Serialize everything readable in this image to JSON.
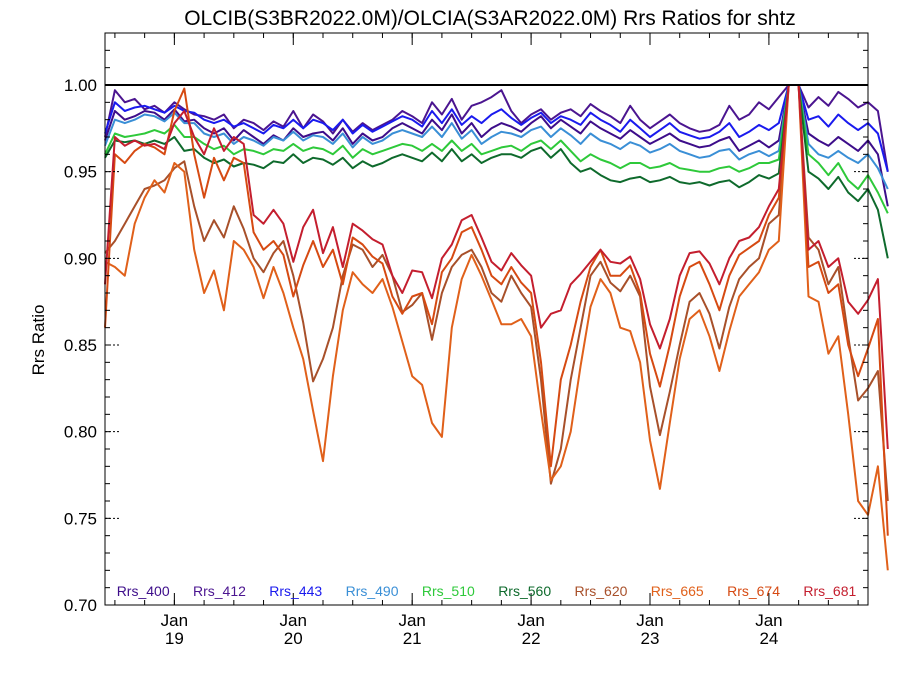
{
  "chart_data": {
    "type": "line",
    "title": "OLCIB(S3BR2022.0M)/OLCIA(S3AR2022.0M)  Rrs Ratios for shtz",
    "xlabel": "",
    "ylabel": "Rrs Ratio",
    "xlim": [
      "Jan 18 10:00",
      "Jan 24 20:00"
    ],
    "ylim": [
      0.7,
      1.03
    ],
    "yticks": [
      "0.70",
      "0.75",
      "0.80",
      "0.85",
      "0.90",
      "0.95",
      "1.00"
    ],
    "xticks": [
      {
        "month": "Jan",
        "day": "19"
      },
      {
        "month": "Jan",
        "day": "20"
      },
      {
        "month": "Jan",
        "day": "21"
      },
      {
        "month": "Jan",
        "day": "22"
      },
      {
        "month": "Jan",
        "day": "23"
      },
      {
        "month": "Jan",
        "day": "24"
      }
    ],
    "reference_line": 1.0,
    "x_start": "Jan 18 10:00",
    "x_step_hours": 2,
    "series": [
      {
        "name": "Rrs_400",
        "color": "#3d0d8a",
        "values": [
          0.968,
          0.985,
          0.98,
          0.982,
          0.985,
          0.984,
          0.98,
          0.986,
          0.979,
          0.98,
          0.975,
          0.972,
          0.975,
          0.968,
          0.974,
          0.97,
          0.966,
          0.971,
          0.968,
          0.975,
          0.97,
          0.972,
          0.973,
          0.968,
          0.975,
          0.966,
          0.972,
          0.968,
          0.97,
          0.975,
          0.978,
          0.975,
          0.972,
          0.98,
          0.974,
          0.983,
          0.972,
          0.978,
          0.97,
          0.975,
          0.978,
          0.976,
          0.973,
          0.978,
          0.982,
          0.975,
          0.98,
          0.976,
          0.972,
          0.979,
          0.975,
          0.972,
          0.969,
          0.974,
          0.97,
          0.966,
          0.969,
          0.972,
          0.968,
          0.966,
          0.964,
          0.965,
          0.968,
          0.97,
          0.962,
          0.965,
          0.968,
          0.964,
          0.968,
          1.0,
          1.0,
          0.972,
          0.968,
          0.965,
          0.97,
          0.966,
          0.962,
          0.968,
          0.96,
          0.93
        ]
      },
      {
        "name": "Rrs_412",
        "color": "#4b1590",
        "values": [
          0.97,
          0.997,
          0.99,
          0.992,
          0.986,
          0.988,
          0.984,
          0.99,
          0.986,
          0.983,
          0.982,
          0.98,
          0.983,
          0.975,
          0.98,
          0.978,
          0.974,
          0.979,
          0.976,
          0.985,
          0.975,
          0.983,
          0.979,
          0.972,
          0.98,
          0.973,
          0.978,
          0.974,
          0.977,
          0.98,
          0.985,
          0.982,
          0.978,
          0.99,
          0.983,
          0.992,
          0.98,
          0.988,
          0.99,
          0.993,
          0.997,
          0.985,
          0.978,
          0.983,
          0.986,
          0.98,
          0.984,
          0.986,
          0.982,
          0.989,
          0.985,
          0.982,
          0.978,
          0.988,
          0.98,
          0.975,
          0.979,
          0.983,
          0.978,
          0.975,
          0.973,
          0.974,
          0.977,
          0.988,
          0.98,
          0.983,
          0.99,
          0.986,
          0.993,
          1.0,
          1.0,
          0.987,
          0.993,
          0.988,
          0.996,
          0.992,
          0.987,
          0.99,
          0.985,
          0.95
        ]
      },
      {
        "name": "Rrs_443",
        "color": "#1a1aee",
        "values": [
          0.972,
          0.99,
          0.985,
          0.987,
          0.988,
          0.986,
          0.984,
          0.988,
          0.985,
          0.984,
          0.98,
          0.978,
          0.98,
          0.976,
          0.978,
          0.975,
          0.972,
          0.977,
          0.975,
          0.98,
          0.975,
          0.98,
          0.978,
          0.974,
          0.98,
          0.972,
          0.977,
          0.973,
          0.976,
          0.979,
          0.982,
          0.98,
          0.976,
          0.985,
          0.978,
          0.986,
          0.977,
          0.982,
          0.978,
          0.983,
          0.986,
          0.981,
          0.977,
          0.981,
          0.984,
          0.978,
          0.982,
          0.98,
          0.977,
          0.984,
          0.98,
          0.977,
          0.973,
          0.98,
          0.975,
          0.97,
          0.974,
          0.978,
          0.973,
          0.971,
          0.969,
          0.97,
          0.973,
          0.978,
          0.97,
          0.973,
          0.977,
          0.974,
          0.978,
          1.0,
          1.0,
          0.98,
          0.982,
          0.976,
          0.983,
          0.978,
          0.974,
          0.978,
          0.972,
          0.95
        ]
      },
      {
        "name": "Rrs_490",
        "color": "#3a8fd6",
        "values": [
          0.965,
          0.98,
          0.978,
          0.98,
          0.983,
          0.982,
          0.979,
          0.984,
          0.978,
          0.978,
          0.972,
          0.97,
          0.972,
          0.966,
          0.97,
          0.968,
          0.965,
          0.97,
          0.968,
          0.973,
          0.968,
          0.971,
          0.97,
          0.966,
          0.972,
          0.964,
          0.97,
          0.966,
          0.968,
          0.972,
          0.974,
          0.972,
          0.97,
          0.976,
          0.97,
          0.978,
          0.969,
          0.974,
          0.966,
          0.97,
          0.973,
          0.972,
          0.97,
          0.974,
          0.976,
          0.97,
          0.975,
          0.971,
          0.966,
          0.972,
          0.968,
          0.966,
          0.963,
          0.967,
          0.965,
          0.961,
          0.963,
          0.966,
          0.962,
          0.96,
          0.958,
          0.959,
          0.962,
          0.963,
          0.957,
          0.96,
          0.962,
          0.959,
          0.962,
          1.0,
          1.0,
          0.966,
          0.96,
          0.958,
          0.962,
          0.958,
          0.955,
          0.96,
          0.952,
          0.94
        ]
      },
      {
        "name": "Rrs_510",
        "color": "#2ec93a",
        "values": [
          0.96,
          0.972,
          0.97,
          0.971,
          0.972,
          0.974,
          0.972,
          0.977,
          0.97,
          0.97,
          0.966,
          0.963,
          0.965,
          0.96,
          0.963,
          0.962,
          0.96,
          0.963,
          0.962,
          0.966,
          0.962,
          0.964,
          0.963,
          0.96,
          0.965,
          0.958,
          0.963,
          0.96,
          0.962,
          0.964,
          0.966,
          0.965,
          0.962,
          0.966,
          0.962,
          0.968,
          0.962,
          0.966,
          0.96,
          0.962,
          0.964,
          0.965,
          0.962,
          0.966,
          0.968,
          0.963,
          0.968,
          0.962,
          0.956,
          0.96,
          0.957,
          0.955,
          0.952,
          0.955,
          0.955,
          0.952,
          0.953,
          0.955,
          0.952,
          0.951,
          0.95,
          0.95,
          0.952,
          0.953,
          0.95,
          0.952,
          0.955,
          0.955,
          0.957,
          1.0,
          1.0,
          0.96,
          0.955,
          0.948,
          0.955,
          0.945,
          0.94,
          0.948,
          0.938,
          0.926
        ]
      },
      {
        "name": "Rrs_560",
        "color": "#0e6a2c",
        "values": [
          0.958,
          0.968,
          0.967,
          0.968,
          0.966,
          0.968,
          0.966,
          0.97,
          0.962,
          0.963,
          0.958,
          0.955,
          0.957,
          0.953,
          0.955,
          0.954,
          0.952,
          0.956,
          0.955,
          0.96,
          0.955,
          0.958,
          0.957,
          0.954,
          0.958,
          0.952,
          0.956,
          0.953,
          0.955,
          0.958,
          0.96,
          0.958,
          0.956,
          0.961,
          0.956,
          0.963,
          0.956,
          0.96,
          0.955,
          0.958,
          0.96,
          0.96,
          0.958,
          0.962,
          0.964,
          0.958,
          0.963,
          0.955,
          0.95,
          0.952,
          0.948,
          0.945,
          0.944,
          0.946,
          0.947,
          0.944,
          0.945,
          0.947,
          0.944,
          0.943,
          0.944,
          0.942,
          0.944,
          0.945,
          0.941,
          0.944,
          0.948,
          0.946,
          0.949,
          1.0,
          1.0,
          0.95,
          0.946,
          0.94,
          0.947,
          0.938,
          0.933,
          0.94,
          0.928,
          0.9
        ]
      },
      {
        "name": "Rrs_620",
        "color": "#a8502a",
        "values": [
          0.903,
          0.91,
          0.92,
          0.93,
          0.94,
          0.942,
          0.945,
          0.952,
          0.956,
          0.93,
          0.91,
          0.922,
          0.912,
          0.93,
          0.917,
          0.9,
          0.892,
          0.903,
          0.91,
          0.89,
          0.863,
          0.829,
          0.842,
          0.86,
          0.89,
          0.908,
          0.905,
          0.895,
          0.902,
          0.89,
          0.869,
          0.873,
          0.88,
          0.853,
          0.88,
          0.895,
          0.902,
          0.905,
          0.895,
          0.88,
          0.875,
          0.89,
          0.88,
          0.872,
          0.83,
          0.77,
          0.79,
          0.83,
          0.86,
          0.89,
          0.898,
          0.886,
          0.881,
          0.89,
          0.878,
          0.826,
          0.798,
          0.823,
          0.85,
          0.875,
          0.88,
          0.868,
          0.848,
          0.872,
          0.888,
          0.895,
          0.9,
          0.92,
          0.925,
          1.0,
          1.0,
          0.912,
          0.905,
          0.885,
          0.895,
          0.855,
          0.818,
          0.825,
          0.835,
          0.76
        ]
      },
      {
        "name": "Rrs_665",
        "color": "#e0601a",
        "values": [
          0.898,
          0.895,
          0.89,
          0.92,
          0.935,
          0.945,
          0.938,
          0.955,
          0.95,
          0.905,
          0.88,
          0.893,
          0.87,
          0.91,
          0.905,
          0.895,
          0.877,
          0.895,
          0.88,
          0.86,
          0.842,
          0.812,
          0.783,
          0.832,
          0.87,
          0.892,
          0.885,
          0.88,
          0.888,
          0.872,
          0.852,
          0.832,
          0.827,
          0.805,
          0.797,
          0.86,
          0.888,
          0.902,
          0.89,
          0.876,
          0.862,
          0.862,
          0.865,
          0.855,
          0.812,
          0.772,
          0.78,
          0.8,
          0.838,
          0.872,
          0.888,
          0.88,
          0.86,
          0.858,
          0.84,
          0.795,
          0.767,
          0.805,
          0.842,
          0.865,
          0.87,
          0.855,
          0.835,
          0.858,
          0.878,
          0.885,
          0.892,
          0.905,
          0.91,
          1.0,
          1.0,
          0.878,
          0.875,
          0.845,
          0.855,
          0.81,
          0.76,
          0.752,
          0.78,
          0.72
        ]
      },
      {
        "name": "Rrs_674",
        "color": "#d64a12",
        "values": [
          0.86,
          0.96,
          0.955,
          0.962,
          0.966,
          0.964,
          0.96,
          0.985,
          0.998,
          0.96,
          0.935,
          0.958,
          0.945,
          0.958,
          0.955,
          0.915,
          0.905,
          0.91,
          0.902,
          0.878,
          0.896,
          0.91,
          0.895,
          0.905,
          0.885,
          0.912,
          0.908,
          0.901,
          0.897,
          0.878,
          0.868,
          0.878,
          0.88,
          0.862,
          0.892,
          0.9,
          0.915,
          0.918,
          0.905,
          0.89,
          0.885,
          0.895,
          0.886,
          0.88,
          0.84,
          0.78,
          0.83,
          0.85,
          0.875,
          0.895,
          0.905,
          0.89,
          0.89,
          0.896,
          0.88,
          0.845,
          0.826,
          0.85,
          0.878,
          0.895,
          0.898,
          0.885,
          0.87,
          0.89,
          0.902,
          0.906,
          0.91,
          0.925,
          0.935,
          1.0,
          1.0,
          0.895,
          0.898,
          0.88,
          0.885,
          0.85,
          0.832,
          0.848,
          0.865,
          0.74
        ]
      },
      {
        "name": "Rrs_681",
        "color": "#c41e2e",
        "values": [
          0.885,
          0.97,
          0.965,
          0.968,
          0.965,
          0.966,
          0.963,
          0.978,
          0.985,
          0.97,
          0.96,
          0.975,
          0.962,
          0.97,
          0.966,
          0.925,
          0.92,
          0.928,
          0.92,
          0.898,
          0.918,
          0.928,
          0.903,
          0.918,
          0.895,
          0.92,
          0.916,
          0.911,
          0.908,
          0.89,
          0.88,
          0.893,
          0.892,
          0.877,
          0.9,
          0.908,
          0.922,
          0.925,
          0.912,
          0.898,
          0.893,
          0.903,
          0.896,
          0.89,
          0.86,
          0.868,
          0.87,
          0.885,
          0.891,
          0.898,
          0.905,
          0.898,
          0.897,
          0.901,
          0.888,
          0.862,
          0.848,
          0.865,
          0.89,
          0.903,
          0.904,
          0.897,
          0.885,
          0.9,
          0.91,
          0.912,
          0.918,
          0.93,
          0.94,
          1.0,
          1.0,
          0.905,
          0.91,
          0.895,
          0.9,
          0.875,
          0.868,
          0.876,
          0.888,
          0.79
        ]
      }
    ]
  }
}
